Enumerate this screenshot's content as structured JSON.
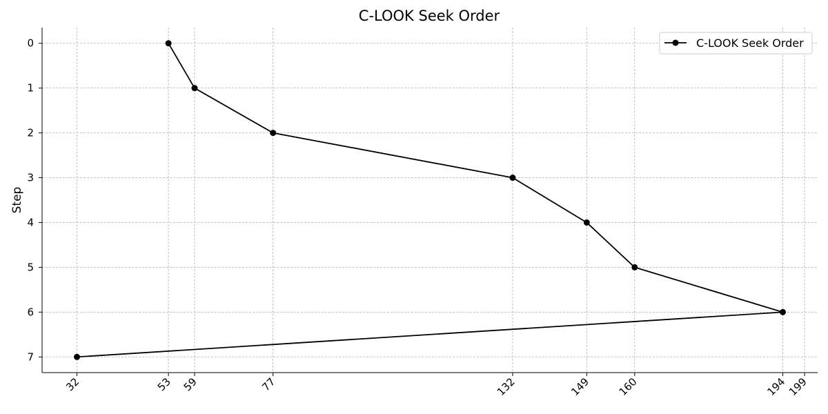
{
  "chart_data": {
    "type": "line",
    "title": "C-LOOK Seek Order",
    "xlabel": "",
    "ylabel": "Step",
    "x_ticks": [
      32,
      53,
      59,
      77,
      132,
      149,
      160,
      194,
      199
    ],
    "y_ticks": [
      0,
      1,
      2,
      3,
      4,
      5,
      6,
      7
    ],
    "xlim": [
      24,
      202
    ],
    "ylim": [
      7.35,
      -0.35
    ],
    "y_inverted": true,
    "grid": true,
    "legend_position": "top-right",
    "series": [
      {
        "name": "C-LOOK Seek Order",
        "color": "#000000",
        "marker": "circle",
        "points": [
          {
            "x": 53,
            "y": 0
          },
          {
            "x": 59,
            "y": 1
          },
          {
            "x": 77,
            "y": 2
          },
          {
            "x": 132,
            "y": 3
          },
          {
            "x": 149,
            "y": 4
          },
          {
            "x": 160,
            "y": 5
          },
          {
            "x": 194,
            "y": 6
          },
          {
            "x": 32,
            "y": 7
          }
        ]
      }
    ]
  }
}
